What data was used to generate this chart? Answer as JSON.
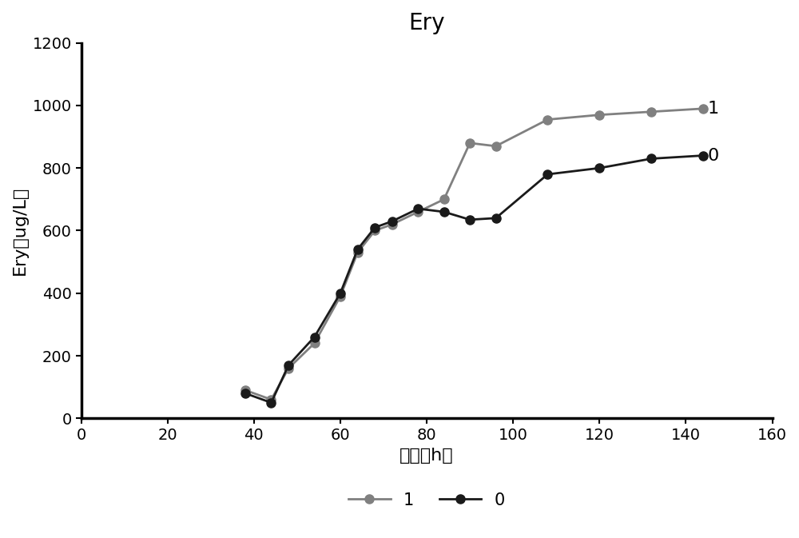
{
  "title": "Ery",
  "xlabel": "时间（h）",
  "ylabel": "Ery（ug/L）",
  "xlim": [
    0,
    160
  ],
  "ylim": [
    0,
    1200
  ],
  "xticks": [
    0,
    20,
    40,
    60,
    80,
    100,
    120,
    140,
    160
  ],
  "yticks": [
    0,
    200,
    400,
    600,
    800,
    1000,
    1200
  ],
  "series1_label": "1",
  "series1_color": "#808080",
  "series1_x": [
    38,
    44,
    48,
    54,
    60,
    64,
    68,
    72,
    78,
    84,
    90,
    96,
    108,
    120,
    132,
    144
  ],
  "series1_y": [
    90,
    60,
    160,
    240,
    390,
    530,
    600,
    620,
    660,
    700,
    880,
    870,
    955,
    970,
    980,
    990
  ],
  "series2_label": "0",
  "series2_color": "#1a1a1a",
  "series2_x": [
    38,
    44,
    48,
    54,
    60,
    64,
    68,
    72,
    78,
    84,
    90,
    96,
    108,
    120,
    132,
    144
  ],
  "series2_y": [
    80,
    50,
    170,
    260,
    400,
    540,
    610,
    630,
    670,
    660,
    635,
    640,
    780,
    800,
    830,
    840
  ],
  "marker": "o",
  "markersize": 8,
  "linewidth": 2.0,
  "title_fontsize": 20,
  "label_fontsize": 16,
  "tick_fontsize": 14,
  "legend_fontsize": 15
}
